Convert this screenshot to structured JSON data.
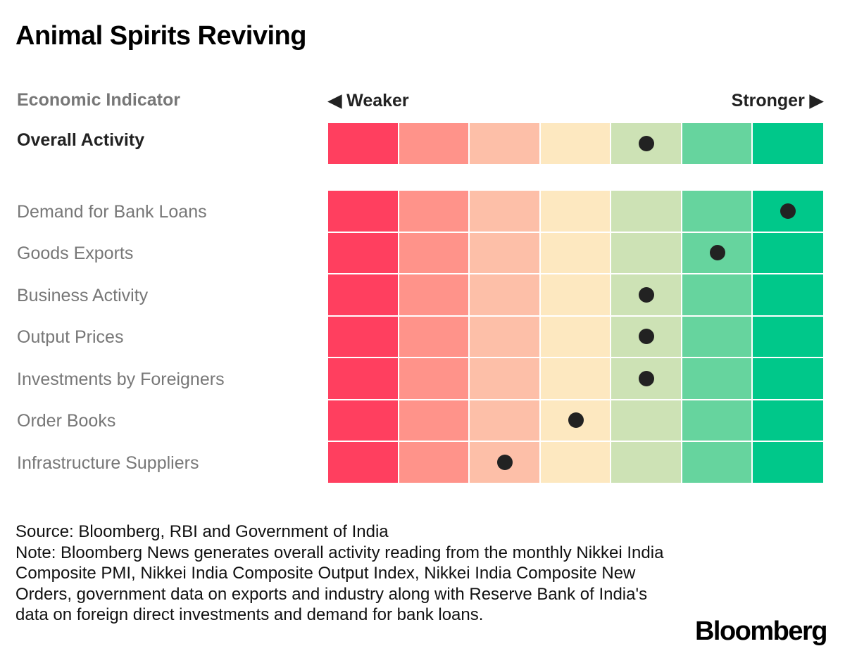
{
  "title": "Animal Spirits Reviving",
  "header": {
    "indicator": "Economic Indicator",
    "weaker": "◀ Weaker",
    "stronger": "Stronger ▶"
  },
  "chart_data": {
    "type": "heatmap",
    "scale_levels": 7,
    "scale_direction": "left = weaker, right = stronger",
    "colors": [
      "#ff3f5f",
      "#ff938a",
      "#fdbfa8",
      "#fde8c0",
      "#cde2b5",
      "#66d49e",
      "#00c88a"
    ],
    "overall": {
      "label": "Overall Activity",
      "level": 5
    },
    "rows": [
      {
        "label": "Demand for Bank Loans",
        "level": 7
      },
      {
        "label": "Goods Exports",
        "level": 6
      },
      {
        "label": "Business Activity",
        "level": 5
      },
      {
        "label": "Output Prices",
        "level": 5
      },
      {
        "label": "Investments by Foreigners",
        "level": 5
      },
      {
        "label": "Order Books",
        "level": 4
      },
      {
        "label": "Infrastructure Suppliers",
        "level": 3
      }
    ]
  },
  "footer": {
    "source": "Source: Bloomberg, RBI and Government of India",
    "note": "Note: Bloomberg News generates overall activity reading from the monthly Nikkei India Composite PMI, Nikkei India Composite Output Index, Nikkei India Composite New Orders, government data on exports and industry along with Reserve Bank of India's data on foreign direct investments and demand for bank loans.",
    "logo": "Bloomberg"
  }
}
